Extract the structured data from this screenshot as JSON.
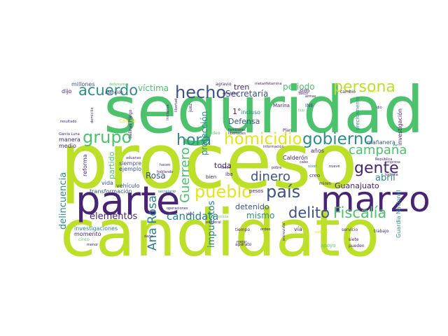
{
  "colors": {
    "lime": "#bcdf27",
    "green": "#4cc26c",
    "teal": "#2c8e8c",
    "blue": "#3b528b",
    "purple": "#482475",
    "yellow": "#e5e419",
    "mint": "#5ec962",
    "cyan": "#26828e"
  },
  "words": {
    "seguridad": "seguridad",
    "proceso": "proceso",
    "candidato": "candidato",
    "parte": "parte",
    "marzo": "marzo",
    "gobierno": "gobierno",
    "homicidio": "homicidio",
    "persona": "persona",
    "hecho": "hecho",
    "acuerdo": "acuerdo",
    "grupo": "grupo",
    "hora": "hora",
    "campana": "campaña",
    "gente": "gente",
    "pueblo": "pueblo",
    "pais": "país",
    "delito": "delito",
    "fiscalia": "Fiscalía",
    "dinero": "dinero",
    "guerrero": "Guerrero",
    "ana_rosa": "Ana Rosa",
    "candidata": "candidata",
    "elementos": "elementos",
    "delincuencia": "delincuencia",
    "impuestos": "impuestos",
    "abril": "abril",
    "guanajuato": "Guanajuato",
    "mismo": "mismo",
    "detenido": "detenido",
    "defensa": "Defensa",
    "secretaria": "Secretaría",
    "tren": "tren",
    "periodo": "periodo",
    "victima": "víctima",
    "proteccion": "protección",
    "partido": "partido",
    "rosa": "Rosa",
    "toda": "toda",
    "primero": "1°",
    "incluso": "incluso",
    "guardia_nacional": "Guardia Nacional",
    "investigacion": "investigación",
    "mananera": "mañanera",
    "calderon": "Calderón",
    "anos": "años",
    "millones": "millones",
    "dijo": "dijo",
    "manera": "manera",
    "medio": "medio",
    "reforma": "reforma",
    "siempre": "siempre",
    "ejemplo": "ejemplo",
    "transformacion": "transformación",
    "momento": "momento",
    "investigaciones": "investigaciones",
    "creo": "creo",
    "via": "vía",
    "vida": "vida",
    "vehiculo": "vehículo",
    "marina": "Marina",
    "camilo": "Camilo",
    "sido": "sido",
    "video": "video",
    "juez": "juez",
    "plan": "Plan",
    "ine": "INE",
    "agravio": "agravio",
    "cambio": "cambio",
    "precisamente": "precisamente",
    "salinas_pliego": "Salinas Pliego",
    "pesos": "pesos",
    "tiempo": "tiempo",
    "apoyo": "apoyo",
    "pueden": "pueden",
    "siete": "siete",
    "servicio": "servicio",
    "trabajo": "trabajo",
    "entrevista": "entrevista",
    "aparato": "aparato",
    "orden": "orden",
    "mejor": "mejor",
    "bien": "bien",
    "iba": "iba",
    "hablando": "hablando",
    "hacen": "hacen",
    "aduanas": "aduanas",
    "garcia_luna": "García Luna",
    "resultado": "resultado",
    "domicilio": "domicilio",
    "atencion": "atención",
    "defensores": "defensores",
    "libertad": "libertad",
    "iniciativa": "iniciativa",
    "metanfetamina": "metanfetamina",
    "estatales": "estatales",
    "familiares": "familiares",
    "libertades": "libertades",
    "informacion": "información",
    "secretario": "secretario",
    "operaciones": "operaciones",
    "electoral": "electoral",
    "cinco": "cinco",
    "dano": "daño",
    "menor": "menor",
    "policia": "policía",
    "politica": "política",
    "republica": "República",
    "empresa": "empresa",
    "todavia": "todavía",
    "nivel": "nivel",
    "nueve": "nueve",
    "pobre": "pobre",
    "dicen": "dicen",
    "miren": "miren",
    "armas": "armas",
    "taxco": "Taxco",
    "dio": "dio",
    "favor": "favor",
    "hijo": "hijo",
    "sino": "sino",
    "cabo": "cabo"
  }
}
